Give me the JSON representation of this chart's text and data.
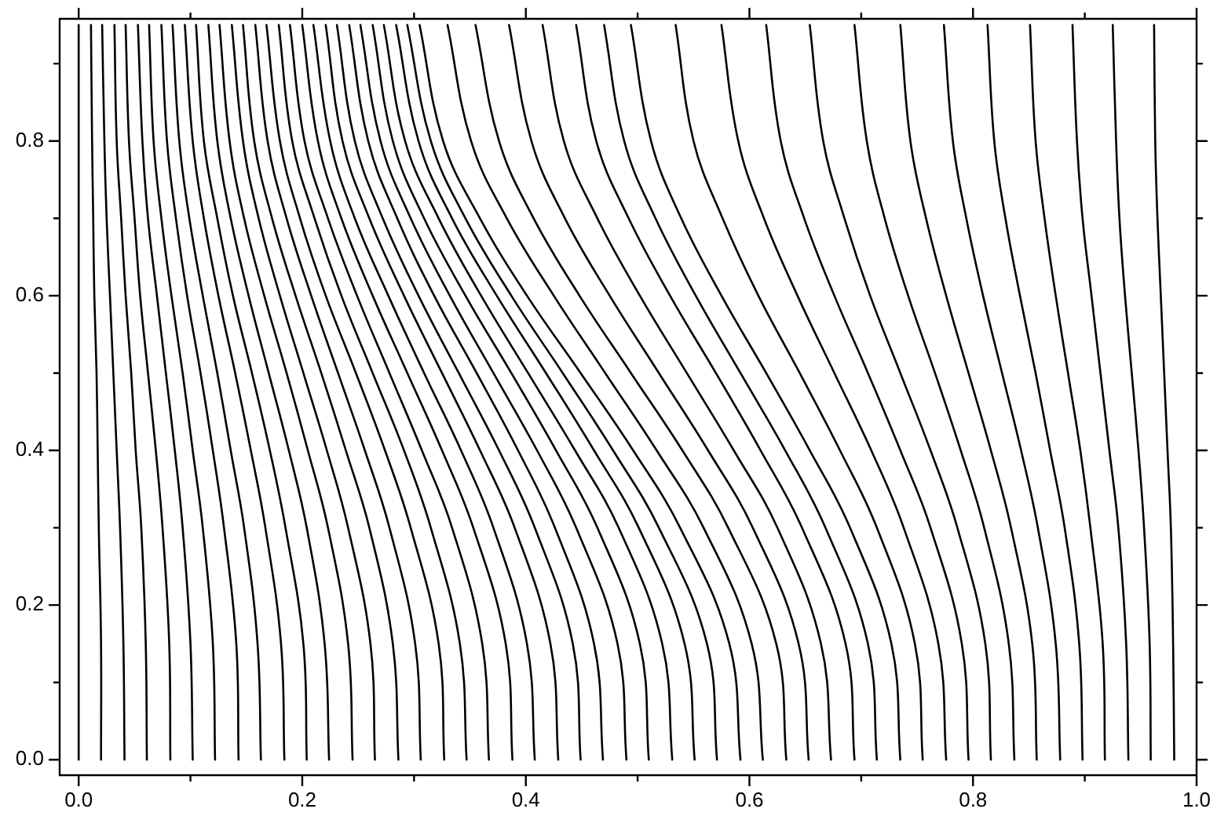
{
  "chart_data": {
    "type": "line",
    "xlim": [
      -0.017,
      1.0
    ],
    "ylim": [
      -0.02,
      0.958
    ],
    "xticks": [
      {
        "value": 0,
        "label": "0.0"
      },
      {
        "value": 0.1,
        "label": null
      },
      {
        "value": 0.2,
        "label": "0.2"
      },
      {
        "value": 0.3,
        "label": null
      },
      {
        "value": 0.4,
        "label": "0.4"
      },
      {
        "value": 0.5,
        "label": null
      },
      {
        "value": 0.6,
        "label": "0.6"
      },
      {
        "value": 0.7,
        "label": null
      },
      {
        "value": 0.8,
        "label": "0.8"
      },
      {
        "value": 0.9,
        "label": null
      },
      {
        "value": 1.0,
        "label": "1.0"
      }
    ],
    "yticks": [
      {
        "value": 0,
        "label": "0.0"
      },
      {
        "value": 0.1,
        "label": null
      },
      {
        "value": 0.2,
        "label": "0.2"
      },
      {
        "value": 0.3,
        "label": null
      },
      {
        "value": 0.4,
        "label": "0.4"
      },
      {
        "value": 0.5,
        "label": null
      },
      {
        "value": 0.6,
        "label": "0.6"
      },
      {
        "value": 0.7,
        "label": null
      },
      {
        "value": 0.8,
        "label": "0.8"
      },
      {
        "value": 0.9,
        "label": null
      }
    ],
    "grid": false,
    "legend": false,
    "marker": "none",
    "line_style": "solid",
    "series": [
      {
        "color": "#000000",
        "x": [
          0,
          0,
          0,
          0,
          0,
          0,
          0,
          0,
          0
        ],
        "values": [
          0,
          0.15,
          0.3,
          0.4,
          0.5,
          0.6,
          0.7,
          0.8,
          0.95
        ]
      },
      {
        "color": "#000000",
        "x": [
          0.02,
          0.02,
          0.018,
          0.017,
          0.016,
          0.014,
          0.013,
          0.012,
          0.011
        ],
        "values": [
          0,
          0.15,
          0.3,
          0.4,
          0.5,
          0.6,
          0.7,
          0.8,
          0.95
        ]
      },
      {
        "color": "#000000",
        "x": [
          0.041,
          0.04,
          0.037,
          0.034,
          0.031,
          0.028,
          0.025,
          0.023,
          0.021
        ],
        "values": [
          0,
          0.15,
          0.3,
          0.4,
          0.5,
          0.6,
          0.7,
          0.8,
          0.95
        ]
      },
      {
        "color": "#000000",
        "x": [
          0.061,
          0.06,
          0.056,
          0.051,
          0.047,
          0.042,
          0.038,
          0.034,
          0.032
        ],
        "values": [
          0,
          0.15,
          0.3,
          0.4,
          0.5,
          0.6,
          0.7,
          0.8,
          0.95
        ]
      },
      {
        "color": "#000000",
        "x": [
          0.082,
          0.081,
          0.075,
          0.069,
          0.062,
          0.055,
          0.05,
          0.045,
          0.042
        ],
        "values": [
          0,
          0.15,
          0.3,
          0.4,
          0.5,
          0.6,
          0.7,
          0.8,
          0.95
        ]
      },
      {
        "color": "#000000",
        "x": [
          0.102,
          0.1,
          0.093,
          0.086,
          0.078,
          0.07,
          0.062,
          0.057,
          0.053
        ],
        "values": [
          0,
          0.15,
          0.3,
          0.4,
          0.5,
          0.6,
          0.7,
          0.8,
          0.95
        ]
      },
      {
        "color": "#000000",
        "x": [
          0.122,
          0.12,
          0.111,
          0.102,
          0.093,
          0.083,
          0.074,
          0.067,
          0.063
        ],
        "values": [
          0,
          0.15,
          0.3,
          0.4,
          0.5,
          0.6,
          0.7,
          0.8,
          0.95
        ]
      },
      {
        "color": "#000000",
        "x": [
          0.143,
          0.141,
          0.13,
          0.12,
          0.109,
          0.097,
          0.087,
          0.079,
          0.074
        ],
        "values": [
          0,
          0.15,
          0.3,
          0.4,
          0.5,
          0.6,
          0.7,
          0.8,
          0.95
        ]
      },
      {
        "color": "#000000",
        "x": [
          0.163,
          0.16,
          0.148,
          0.136,
          0.124,
          0.111,
          0.099,
          0.09,
          0.084
        ],
        "values": [
          0,
          0.15,
          0.3,
          0.4,
          0.5,
          0.6,
          0.7,
          0.8,
          0.95
        ]
      },
      {
        "color": "#000000",
        "x": [
          0.184,
          0.181,
          0.167,
          0.154,
          0.14,
          0.125,
          0.112,
          0.102,
          0.095
        ],
        "values": [
          0,
          0.15,
          0.3,
          0.4,
          0.5,
          0.6,
          0.7,
          0.8,
          0.95
        ]
      },
      {
        "color": "#000000",
        "x": [
          0.204,
          0.201,
          0.185,
          0.171,
          0.155,
          0.138,
          0.124,
          0.112,
          0.105
        ],
        "values": [
          0,
          0.15,
          0.3,
          0.4,
          0.5,
          0.6,
          0.7,
          0.8,
          0.95
        ]
      },
      {
        "color": "#000000",
        "x": [
          0.224,
          0.22,
          0.204,
          0.188,
          0.17,
          0.152,
          0.136,
          0.124,
          0.116
        ],
        "values": [
          0,
          0.15,
          0.3,
          0.4,
          0.5,
          0.6,
          0.7,
          0.8,
          0.95
        ]
      },
      {
        "color": "#000000",
        "x": [
          0.245,
          0.241,
          0.223,
          0.205,
          0.186,
          0.166,
          0.148,
          0.135,
          0.126
        ],
        "values": [
          0,
          0.15,
          0.3,
          0.4,
          0.5,
          0.6,
          0.7,
          0.8,
          0.95
        ]
      },
      {
        "color": "#000000",
        "x": [
          0.265,
          0.261,
          0.241,
          0.222,
          0.201,
          0.18,
          0.161,
          0.147,
          0.137
        ],
        "values": [
          0,
          0.15,
          0.3,
          0.4,
          0.5,
          0.6,
          0.7,
          0.8,
          0.95
        ]
      },
      {
        "color": "#000000",
        "x": [
          0.286,
          0.281,
          0.26,
          0.239,
          0.217,
          0.194,
          0.173,
          0.157,
          0.147
        ],
        "values": [
          0,
          0.15,
          0.3,
          0.4,
          0.5,
          0.6,
          0.7,
          0.8,
          0.95
        ]
      },
      {
        "color": "#000000",
        "x": [
          0.306,
          0.301,
          0.278,
          0.256,
          0.232,
          0.208,
          0.186,
          0.169,
          0.158
        ],
        "values": [
          0,
          0.15,
          0.3,
          0.4,
          0.5,
          0.6,
          0.7,
          0.8,
          0.95
        ]
      },
      {
        "color": "#000000",
        "x": [
          0.327,
          0.322,
          0.297,
          0.274,
          0.248,
          0.221,
          0.198,
          0.18,
          0.168
        ],
        "values": [
          0,
          0.15,
          0.3,
          0.4,
          0.5,
          0.6,
          0.7,
          0.8,
          0.95
        ]
      },
      {
        "color": "#000000",
        "x": [
          0.347,
          0.341,
          0.315,
          0.291,
          0.263,
          0.235,
          0.211,
          0.191,
          0.179
        ],
        "values": [
          0,
          0.15,
          0.3,
          0.4,
          0.5,
          0.6,
          0.7,
          0.8,
          0.95
        ]
      },
      {
        "color": "#000000",
        "x": [
          0.367,
          0.361,
          0.334,
          0.307,
          0.278,
          0.249,
          0.223,
          0.202,
          0.189
        ],
        "values": [
          0,
          0.15,
          0.3,
          0.4,
          0.5,
          0.6,
          0.7,
          0.8,
          0.95
        ]
      },
      {
        "color": "#000000",
        "x": [
          0.388,
          0.382,
          0.353,
          0.325,
          0.294,
          0.263,
          0.235,
          0.214,
          0.2
        ],
        "values": [
          0,
          0.15,
          0.3,
          0.4,
          0.5,
          0.6,
          0.7,
          0.8,
          0.95
        ]
      },
      {
        "color": "#000000",
        "x": [
          0.408,
          0.401,
          0.371,
          0.342,
          0.309,
          0.277,
          0.247,
          0.225,
          0.21
        ],
        "values": [
          0,
          0.15,
          0.3,
          0.4,
          0.5,
          0.6,
          0.7,
          0.8,
          0.95
        ]
      },
      {
        "color": "#000000",
        "x": [
          0.429,
          0.422,
          0.39,
          0.359,
          0.325,
          0.291,
          0.26,
          0.236,
          0.221
        ],
        "values": [
          0,
          0.15,
          0.3,
          0.4,
          0.5,
          0.6,
          0.7,
          0.8,
          0.95
        ]
      },
      {
        "color": "#000000",
        "x": [
          0.449,
          0.442,
          0.408,
          0.376,
          0.34,
          0.304,
          0.272,
          0.247,
          0.231
        ],
        "values": [
          0,
          0.15,
          0.3,
          0.4,
          0.5,
          0.6,
          0.7,
          0.8,
          0.95
        ]
      },
      {
        "color": "#000000",
        "x": [
          0.469,
          0.461,
          0.426,
          0.393,
          0.356,
          0.318,
          0.285,
          0.259,
          0.242
        ],
        "values": [
          0,
          0.15,
          0.3,
          0.4,
          0.5,
          0.6,
          0.7,
          0.8,
          0.95
        ]
      },
      {
        "color": "#000000",
        "x": [
          0.49,
          0.482,
          0.445,
          0.41,
          0.371,
          0.332,
          0.297,
          0.27,
          0.252
        ],
        "values": [
          0,
          0.15,
          0.3,
          0.4,
          0.5,
          0.6,
          0.7,
          0.8,
          0.95
        ]
      },
      {
        "color": "#000000",
        "x": [
          0.51,
          0.502,
          0.464,
          0.427,
          0.387,
          0.346,
          0.309,
          0.281,
          0.263
        ],
        "values": [
          0,
          0.15,
          0.3,
          0.4,
          0.5,
          0.6,
          0.7,
          0.8,
          0.95
        ]
      },
      {
        "color": "#000000",
        "x": [
          0.531,
          0.522,
          0.483,
          0.444,
          0.402,
          0.36,
          0.322,
          0.292,
          0.273
        ],
        "values": [
          0,
          0.15,
          0.3,
          0.4,
          0.5,
          0.6,
          0.7,
          0.8,
          0.95
        ]
      },
      {
        "color": "#000000",
        "x": [
          0.551,
          0.542,
          0.501,
          0.461,
          0.418,
          0.374,
          0.334,
          0.304,
          0.284
        ],
        "values": [
          0,
          0.15,
          0.3,
          0.4,
          0.5,
          0.6,
          0.7,
          0.8,
          0.95
        ]
      },
      {
        "color": "#000000",
        "x": [
          0.571,
          0.562,
          0.519,
          0.478,
          0.433,
          0.387,
          0.346,
          0.315,
          0.294
        ],
        "values": [
          0,
          0.15,
          0.3,
          0.4,
          0.5,
          0.6,
          0.7,
          0.8,
          0.95
        ]
      },
      {
        "color": "#000000",
        "x": [
          0.592,
          0.582,
          0.538,
          0.496,
          0.449,
          0.401,
          0.359,
          0.326,
          0.305
        ],
        "values": [
          0,
          0.15,
          0.3,
          0.4,
          0.5,
          0.6,
          0.7,
          0.8,
          0.95
        ]
      },
      {
        "color": "#000000",
        "x": [
          0.612,
          0.602,
          0.559,
          0.517,
          0.471,
          0.425,
          0.383,
          0.351,
          0.33
        ],
        "values": [
          0,
          0.15,
          0.3,
          0.4,
          0.5,
          0.6,
          0.7,
          0.8,
          0.95
        ]
      },
      {
        "color": "#000000",
        "x": [
          0.633,
          0.624,
          0.581,
          0.54,
          0.494,
          0.448,
          0.407,
          0.376,
          0.355
        ],
        "values": [
          0,
          0.15,
          0.3,
          0.4,
          0.5,
          0.6,
          0.7,
          0.8,
          0.95
        ]
      },
      {
        "color": "#000000",
        "x": [
          0.653,
          0.644,
          0.603,
          0.563,
          0.519,
          0.475,
          0.435,
          0.405,
          0.385
        ],
        "values": [
          0,
          0.15,
          0.3,
          0.4,
          0.5,
          0.6,
          0.7,
          0.8,
          0.95
        ]
      },
      {
        "color": "#000000",
        "x": [
          0.673,
          0.664,
          0.625,
          0.586,
          0.544,
          0.502,
          0.464,
          0.434,
          0.415
        ],
        "values": [
          0,
          0.15,
          0.3,
          0.4,
          0.5,
          0.6,
          0.7,
          0.8,
          0.95
        ]
      },
      {
        "color": "#000000",
        "x": [
          0.694,
          0.686,
          0.647,
          0.61,
          0.57,
          0.529,
          0.492,
          0.463,
          0.445
        ],
        "values": [
          0,
          0.15,
          0.3,
          0.4,
          0.5,
          0.6,
          0.7,
          0.8,
          0.95
        ]
      },
      {
        "color": "#000000",
        "x": [
          0.714,
          0.706,
          0.668,
          0.632,
          0.592,
          0.552,
          0.516,
          0.488,
          0.47
        ],
        "values": [
          0,
          0.15,
          0.3,
          0.4,
          0.5,
          0.6,
          0.7,
          0.8,
          0.95
        ]
      },
      {
        "color": "#000000",
        "x": [
          0.735,
          0.727,
          0.69,
          0.654,
          0.615,
          0.575,
          0.539,
          0.512,
          0.494
        ],
        "values": [
          0,
          0.15,
          0.3,
          0.4,
          0.5,
          0.6,
          0.7,
          0.8,
          0.95
        ]
      },
      {
        "color": "#000000",
        "x": [
          0.755,
          0.748,
          0.714,
          0.681,
          0.645,
          0.608,
          0.576,
          0.55,
          0.534
        ],
        "values": [
          0,
          0.15,
          0.3,
          0.4,
          0.5,
          0.6,
          0.7,
          0.8,
          0.95
        ]
      },
      {
        "color": "#000000",
        "x": [
          0.776,
          0.769,
          0.738,
          0.709,
          0.676,
          0.643,
          0.613,
          0.59,
          0.575
        ],
        "values": [
          0,
          0.15,
          0.3,
          0.4,
          0.5,
          0.6,
          0.7,
          0.8,
          0.95
        ]
      },
      {
        "color": "#000000",
        "x": [
          0.796,
          0.79,
          0.762,
          0.735,
          0.706,
          0.676,
          0.649,
          0.628,
          0.615
        ],
        "values": [
          0,
          0.15,
          0.3,
          0.4,
          0.5,
          0.6,
          0.7,
          0.8,
          0.95
        ]
      },
      {
        "color": "#000000",
        "x": [
          0.816,
          0.811,
          0.786,
          0.762,
          0.735,
          0.708,
          0.685,
          0.666,
          0.654
        ],
        "values": [
          0,
          0.15,
          0.3,
          0.4,
          0.5,
          0.6,
          0.7,
          0.8,
          0.95
        ]
      },
      {
        "color": "#000000",
        "x": [
          0.837,
          0.832,
          0.81,
          0.789,
          0.766,
          0.742,
          0.721,
          0.705,
          0.694
        ],
        "values": [
          0,
          0.15,
          0.3,
          0.4,
          0.5,
          0.6,
          0.7,
          0.8,
          0.95
        ]
      },
      {
        "color": "#000000",
        "x": [
          0.857,
          0.853,
          0.834,
          0.816,
          0.796,
          0.776,
          0.758,
          0.744,
          0.735
        ],
        "values": [
          0,
          0.15,
          0.3,
          0.4,
          0.5,
          0.6,
          0.7,
          0.8,
          0.95
        ]
      },
      {
        "color": "#000000",
        "x": [
          0.878,
          0.874,
          0.858,
          0.843,
          0.826,
          0.809,
          0.794,
          0.782,
          0.774
        ],
        "values": [
          0,
          0.15,
          0.3,
          0.4,
          0.5,
          0.6,
          0.7,
          0.8,
          0.95
        ]
      },
      {
        "color": "#000000",
        "x": [
          0.898,
          0.895,
          0.882,
          0.869,
          0.856,
          0.842,
          0.829,
          0.819,
          0.813
        ],
        "values": [
          0,
          0.15,
          0.3,
          0.4,
          0.5,
          0.6,
          0.7,
          0.8,
          0.95
        ]
      },
      {
        "color": "#000000",
        "x": [
          0.918,
          0.916,
          0.905,
          0.896,
          0.885,
          0.874,
          0.864,
          0.856,
          0.851
        ],
        "values": [
          0,
          0.15,
          0.3,
          0.4,
          0.5,
          0.6,
          0.7,
          0.8,
          0.95
        ]
      },
      {
        "color": "#000000",
        "x": [
          0.939,
          0.937,
          0.93,
          0.922,
          0.914,
          0.906,
          0.898,
          0.893,
          0.889
        ],
        "values": [
          0,
          0.15,
          0.3,
          0.4,
          0.5,
          0.6,
          0.7,
          0.8,
          0.95
        ]
      },
      {
        "color": "#000000",
        "x": [
          0.959,
          0.958,
          0.953,
          0.948,
          0.942,
          0.936,
          0.931,
          0.928,
          0.925
        ],
        "values": [
          0,
          0.15,
          0.3,
          0.4,
          0.5,
          0.6,
          0.7,
          0.8,
          0.95
        ]
      },
      {
        "color": "#000000",
        "x": [
          0.98,
          0.979,
          0.977,
          0.974,
          0.971,
          0.968,
          0.965,
          0.963,
          0.962
        ],
        "values": [
          0,
          0.15,
          0.3,
          0.4,
          0.5,
          0.6,
          0.7,
          0.8,
          0.95
        ]
      }
    ]
  }
}
